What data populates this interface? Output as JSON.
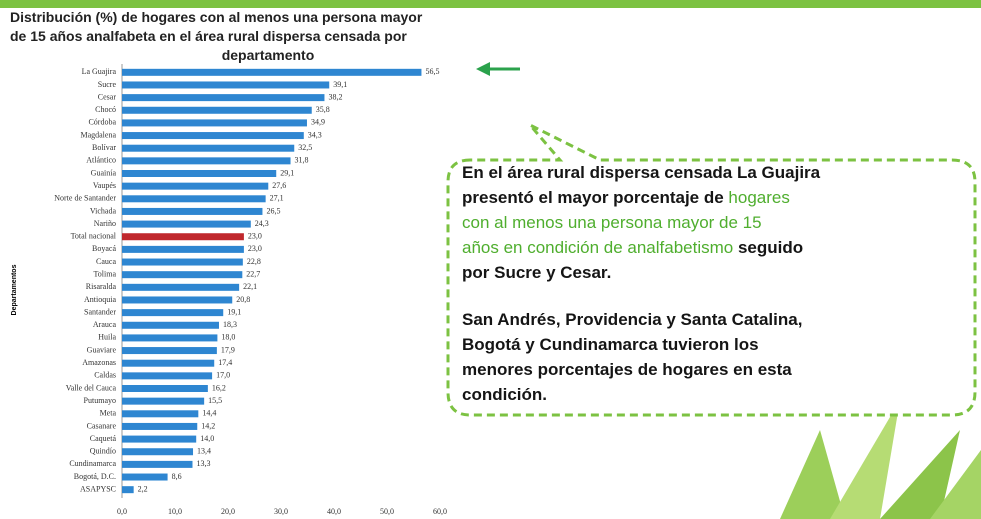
{
  "chart_data": {
    "type": "bar",
    "orientation": "horizontal",
    "title": [
      "Distribución (%) de hogares con al menos una persona mayor",
      "de 15 años analfabeta en el área rural dispersa censada por",
      "departamento"
    ],
    "y_label": "Departamentos",
    "categories": [
      "La Guajira",
      "Sucre",
      "Cesar",
      "Chocó",
      "Córdoba",
      "Magdalena",
      "Bolívar",
      "Atlántico",
      "Guainía",
      "Vaupés",
      "Norte de Santander",
      "Vichada",
      "Nariño",
      "Total nacional",
      "Boyacá",
      "Cauca",
      "Tolima",
      "Risaralda",
      "Antioquia",
      "Santander",
      "Arauca",
      "Huila",
      "Guaviare",
      "Amazonas",
      "Caldas",
      "Valle del Cauca",
      "Putumayo",
      "Meta",
      "Casanare",
      "Caquetá",
      "Quindío",
      "Cundinamarca",
      "Bogotá, D.C.",
      "ASAPYSC"
    ],
    "values": [
      56.5,
      39.1,
      38.2,
      35.8,
      34.9,
      34.3,
      32.5,
      31.8,
      29.1,
      27.6,
      27.1,
      26.5,
      24.3,
      23.0,
      23.0,
      22.8,
      22.7,
      22.1,
      20.8,
      19.1,
      18.3,
      18.0,
      17.9,
      17.4,
      17.0,
      16.2,
      15.5,
      14.4,
      14.2,
      14.0,
      13.4,
      13.3,
      8.6,
      2.2
    ],
    "value_labels": [
      "56,5",
      "39,1",
      "38,2",
      "35,8",
      "34,9",
      "34,3",
      "32,5",
      "31,8",
      "29,1",
      "27,6",
      "27,1",
      "26,5",
      "24,3",
      "23,0",
      "23,0",
      "22,8",
      "22,7",
      "22,1",
      "20,8",
      "19,1",
      "18,3",
      "18,0",
      "17,9",
      "17,4",
      "17,0",
      "16,2",
      "15,5",
      "14,4",
      "14,2",
      "14,0",
      "13,4",
      "13,3",
      "8,6",
      "2,2"
    ],
    "colors": [
      "#2e86d1",
      "#2e86d1",
      "#2e86d1",
      "#2e86d1",
      "#2e86d1",
      "#2e86d1",
      "#2e86d1",
      "#2e86d1",
      "#2e86d1",
      "#2e86d1",
      "#2e86d1",
      "#2e86d1",
      "#2e86d1",
      "#c0282d",
      "#2e86d1",
      "#2e86d1",
      "#2e86d1",
      "#2e86d1",
      "#2e86d1",
      "#2e86d1",
      "#2e86d1",
      "#2e86d1",
      "#2e86d1",
      "#2e86d1",
      "#2e86d1",
      "#2e86d1",
      "#2e86d1",
      "#2e86d1",
      "#2e86d1",
      "#2e86d1",
      "#2e86d1",
      "#2e86d1",
      "#2e86d1",
      "#2e86d1"
    ],
    "xlim": [
      0,
      60
    ],
    "xticks": [
      {
        "value": 0,
        "label": "0,0"
      },
      {
        "value": 10,
        "label": "10,0"
      },
      {
        "value": 20,
        "label": "20,0"
      },
      {
        "value": 30,
        "label": "30,0"
      },
      {
        "value": 40,
        "label": "40,0"
      },
      {
        "value": 50,
        "label": "50,0"
      },
      {
        "value": 60,
        "label": "60,0"
      }
    ]
  },
  "callout": {
    "paragraphs": [
      [
        [
          {
            "text": "En el área rural dispersa censada La Guajira",
            "style": "bold"
          }
        ],
        [
          {
            "text": "presentó el mayor porcentaje de ",
            "style": "bold"
          },
          {
            "text": "hogares",
            "style": "light"
          }
        ],
        [
          {
            "text": "con al menos una persona mayor de 15",
            "style": "light"
          }
        ],
        [
          {
            "text": "años en condición de analfabetismo ",
            "style": "light"
          },
          {
            "text": "seguido",
            "style": "bold"
          }
        ],
        [
          {
            "text": "por Sucre y Cesar.",
            "style": "bold"
          }
        ]
      ],
      [
        [
          {
            "text": "San Andrés, Providencia y Santa Catalina,",
            "style": "bold"
          }
        ],
        [
          {
            "text": "Bogotá y Cundinamarca tuvieron los",
            "style": "bold"
          }
        ],
        [
          {
            "text": "menores porcentajes de hogares en esta",
            "style": "bold"
          }
        ],
        [
          {
            "text": "condición.",
            "style": "bold"
          }
        ]
      ]
    ]
  }
}
